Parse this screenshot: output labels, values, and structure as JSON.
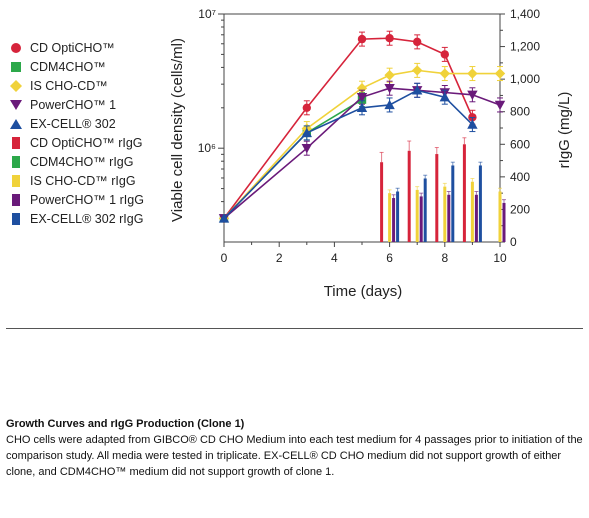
{
  "chart_data": {
    "type": "line",
    "xlabel": "Time (days)",
    "ylabel_left": "Viable cell density (cells/ml)",
    "ylabel_right": "rIgG (mg/L)",
    "x_ticks": [
      "0",
      "2",
      "4",
      "6",
      "8",
      "10"
    ],
    "y_left_ticks": [
      "10⁶",
      "10⁷"
    ],
    "y_left_log": true,
    "y_left_range": [
      200000,
      10000000
    ],
    "y_right_ticks": [
      "0",
      "200",
      "400",
      "600",
      "800",
      "1,000",
      "1,200",
      "1,400"
    ],
    "y_right_range": [
      0,
      1400
    ],
    "x_range": [
      0,
      10
    ],
    "line_series": [
      {
        "name": "CD OptiCHO™",
        "color": "#d6243b",
        "marker": "circle",
        "x": [
          0,
          3,
          5,
          6,
          7,
          8,
          9
        ],
        "y": [
          300000,
          2000000,
          6500000,
          6600000,
          6200000,
          5000000,
          1700000
        ]
      },
      {
        "name": "CDM4CHO™",
        "color": "#2ca84a",
        "marker": "square",
        "x": [
          0,
          3,
          5
        ],
        "y": [
          300000,
          1300000,
          2300000
        ]
      },
      {
        "name": "IS CHO-CD™",
        "color": "#f0d23a",
        "marker": "diamond",
        "x": [
          0,
          3,
          5,
          6,
          7,
          8,
          9,
          10
        ],
        "y": [
          300000,
          1400000,
          2800000,
          3500000,
          3800000,
          3600000,
          3600000,
          3600000
        ]
      },
      {
        "name": "PowerCHO™ 1",
        "color": "#6a1a7a",
        "marker": "triangle-down",
        "x": [
          0,
          3,
          5,
          6,
          7,
          8,
          9,
          10
        ],
        "y": [
          300000,
          1000000,
          2400000,
          2800000,
          2700000,
          2600000,
          2500000,
          2100000
        ]
      },
      {
        "name": "EX-CELL® 302",
        "color": "#1e4fa0",
        "marker": "triangle-up",
        "x": [
          0,
          3,
          5,
          6,
          7,
          8,
          9
        ],
        "y": [
          300000,
          1300000,
          2000000,
          2100000,
          2700000,
          2400000,
          1500000
        ]
      }
    ],
    "bar_series": [
      {
        "name": "CD OptiCHO™ rIgG",
        "color": "#d6243b",
        "x": [
          6,
          7,
          8,
          9
        ],
        "values": [
          490,
          560,
          540,
          600
        ],
        "err": [
          60,
          60,
          40,
          40
        ]
      },
      {
        "name": "CDM4CHO™ rIgG",
        "color": "#2ca84a",
        "x": [
          6,
          7,
          8,
          9
        ],
        "values": [
          0,
          0,
          0,
          0
        ],
        "err": [
          0,
          0,
          0,
          0
        ]
      },
      {
        "name": "IS CHO-CD™ rIgG",
        "color": "#f0d23a",
        "x": [
          6,
          7,
          8,
          9,
          10
        ],
        "values": [
          300,
          320,
          340,
          370,
          310
        ],
        "err": [
          20,
          20,
          20,
          20,
          20
        ]
      },
      {
        "name": "PowerCHO™ 1 rIgG",
        "color": "#6a1a7a",
        "x": [
          6,
          7,
          8,
          9,
          10
        ],
        "values": [
          270,
          280,
          290,
          290,
          240
        ],
        "err": [
          20,
          20,
          20,
          20,
          20
        ]
      },
      {
        "name": "EX-CELL® 302 rIgG",
        "color": "#1e4fa0",
        "x": [
          6,
          7,
          8,
          9
        ],
        "values": [
          310,
          390,
          470,
          470
        ],
        "err": [
          20,
          20,
          20,
          20
        ]
      }
    ]
  },
  "legend": [
    {
      "label": "CD OptiCHO™",
      "color": "#d6243b",
      "marker": "circle"
    },
    {
      "label": "CDM4CHO™",
      "color": "#2ca84a",
      "marker": "square"
    },
    {
      "label": "IS CHO-CD™",
      "color": "#f0d23a",
      "marker": "diamond"
    },
    {
      "label": "PowerCHO™ 1",
      "color": "#6a1a7a",
      "marker": "triangle-down"
    },
    {
      "label": "EX-CELL® 302",
      "color": "#1e4fa0",
      "marker": "triangle-up"
    },
    {
      "label": "CD OptiCHO™ rIgG",
      "color": "#d6243b",
      "marker": "bar"
    },
    {
      "label": "CDM4CHO™ rIgG",
      "color": "#2ca84a",
      "marker": "bar"
    },
    {
      "label": "IS CHO-CD™ rIgG",
      "color": "#f0d23a",
      "marker": "bar"
    },
    {
      "label": "PowerCHO™ 1 rIgG",
      "color": "#6a1a7a",
      "marker": "bar"
    },
    {
      "label": "EX-CELL® 302 rIgG",
      "color": "#1e4fa0",
      "marker": "bar"
    }
  ],
  "caption": {
    "title": "Growth Curves and rIgG Production (Clone 1)",
    "body": "CHO cells were adapted from GIBCO® CD CHO Medium into each test medium for 4 passages prior to initiation of the comparison study. All media were tested in triplicate. EX-CELL® CD CHO medium did not support growth of either clone, and CDM4CHO™ medium did not support growth of clone 1."
  }
}
